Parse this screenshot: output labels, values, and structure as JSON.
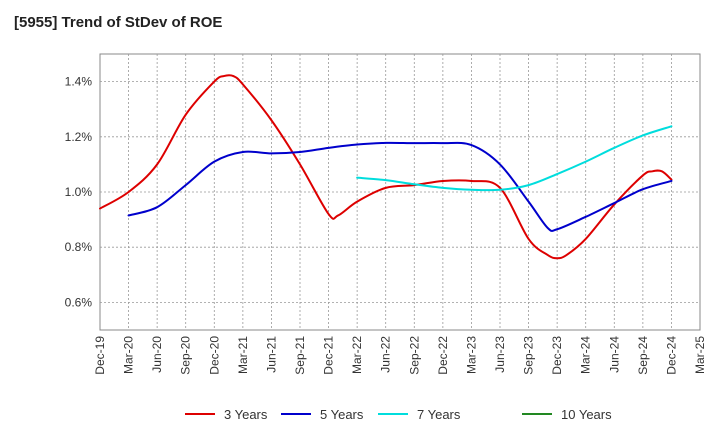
{
  "chart_data": {
    "type": "line",
    "title": "[5955]  Trend of StDev of ROE",
    "xlabel": "",
    "ylabel": "",
    "x_ticks": [
      "Dec-19",
      "Mar-20",
      "Jun-20",
      "Sep-20",
      "Dec-20",
      "Mar-21",
      "Jun-21",
      "Sep-21",
      "Dec-21",
      "Mar-22",
      "Jun-22",
      "Sep-22",
      "Dec-22",
      "Mar-23",
      "Jun-23",
      "Sep-23",
      "Dec-23",
      "Mar-24",
      "Jun-24",
      "Sep-24",
      "Dec-24",
      "Mar-25"
    ],
    "y_ticks": [
      "0.6%",
      "0.8%",
      "1.0%",
      "1.2%",
      "1.4%"
    ],
    "ylim": [
      0.5,
      1.5
    ],
    "y_unit": "%",
    "grid": true,
    "legend_position": "bottom",
    "series": [
      {
        "name": "3 Years",
        "color": "#dd0000",
        "points": [
          [
            "Dec-19",
            0.94
          ],
          [
            "Mar-20",
            1.0
          ],
          [
            "Jun-20",
            1.1
          ],
          [
            "Sep-20",
            1.28
          ],
          [
            "Dec-20",
            1.4
          ],
          [
            "Jan-21",
            1.42
          ],
          [
            "Feb-21",
            1.42
          ],
          [
            "Mar-21",
            1.39
          ],
          [
            "Jun-21",
            1.26
          ],
          [
            "Sep-21",
            1.1
          ],
          [
            "Dec-21",
            0.92
          ],
          [
            "Jan-22",
            0.915
          ],
          [
            "Mar-22",
            0.965
          ],
          [
            "Jun-22",
            1.015
          ],
          [
            "Sep-22",
            1.025
          ],
          [
            "Dec-22",
            1.04
          ],
          [
            "Mar-23",
            1.04
          ],
          [
            "Jun-23",
            1.015
          ],
          [
            "Sep-23",
            0.83
          ],
          [
            "Nov-23",
            0.772
          ],
          [
            "Dec-23",
            0.76
          ],
          [
            "Jan-24",
            0.772
          ],
          [
            "Mar-24",
            0.83
          ],
          [
            "Jun-24",
            0.955
          ],
          [
            "Sep-24",
            1.06
          ],
          [
            "Oct-24",
            1.075
          ],
          [
            "Nov-24",
            1.075
          ],
          [
            "Dec-24",
            1.045
          ]
        ]
      },
      {
        "name": "5 Years",
        "color": "#0000cc",
        "points": [
          [
            "Mar-20",
            0.915
          ],
          [
            "Jun-20",
            0.945
          ],
          [
            "Sep-20",
            1.025
          ],
          [
            "Dec-20",
            1.11
          ],
          [
            "Mar-21",
            1.145
          ],
          [
            "Jun-21",
            1.14
          ],
          [
            "Sep-21",
            1.145
          ],
          [
            "Dec-21",
            1.16
          ],
          [
            "Mar-22",
            1.172
          ],
          [
            "Jun-22",
            1.178
          ],
          [
            "Sep-22",
            1.177
          ],
          [
            "Dec-22",
            1.177
          ],
          [
            "Mar-23",
            1.17
          ],
          [
            "Jun-23",
            1.1
          ],
          [
            "Sep-23",
            0.965
          ],
          [
            "Nov-23",
            0.87
          ],
          [
            "Dec-23",
            0.865
          ],
          [
            "Mar-24",
            0.91
          ],
          [
            "Jun-24",
            0.96
          ],
          [
            "Sep-24",
            1.01
          ],
          [
            "Dec-24",
            1.04
          ]
        ]
      },
      {
        "name": "7 Years",
        "color": "#00dddd",
        "points": [
          [
            "Mar-22",
            1.052
          ],
          [
            "Jun-22",
            1.043
          ],
          [
            "Sep-22",
            1.028
          ],
          [
            "Dec-22",
            1.015
          ],
          [
            "Mar-23",
            1.008
          ],
          [
            "Jun-23",
            1.008
          ],
          [
            "Sep-23",
            1.025
          ],
          [
            "Dec-23",
            1.065
          ],
          [
            "Mar-24",
            1.11
          ],
          [
            "Jun-24",
            1.16
          ],
          [
            "Sep-24",
            1.205
          ],
          [
            "Dec-24",
            1.238
          ]
        ]
      },
      {
        "name": "10 Years",
        "color": "#228822",
        "points": []
      }
    ]
  }
}
